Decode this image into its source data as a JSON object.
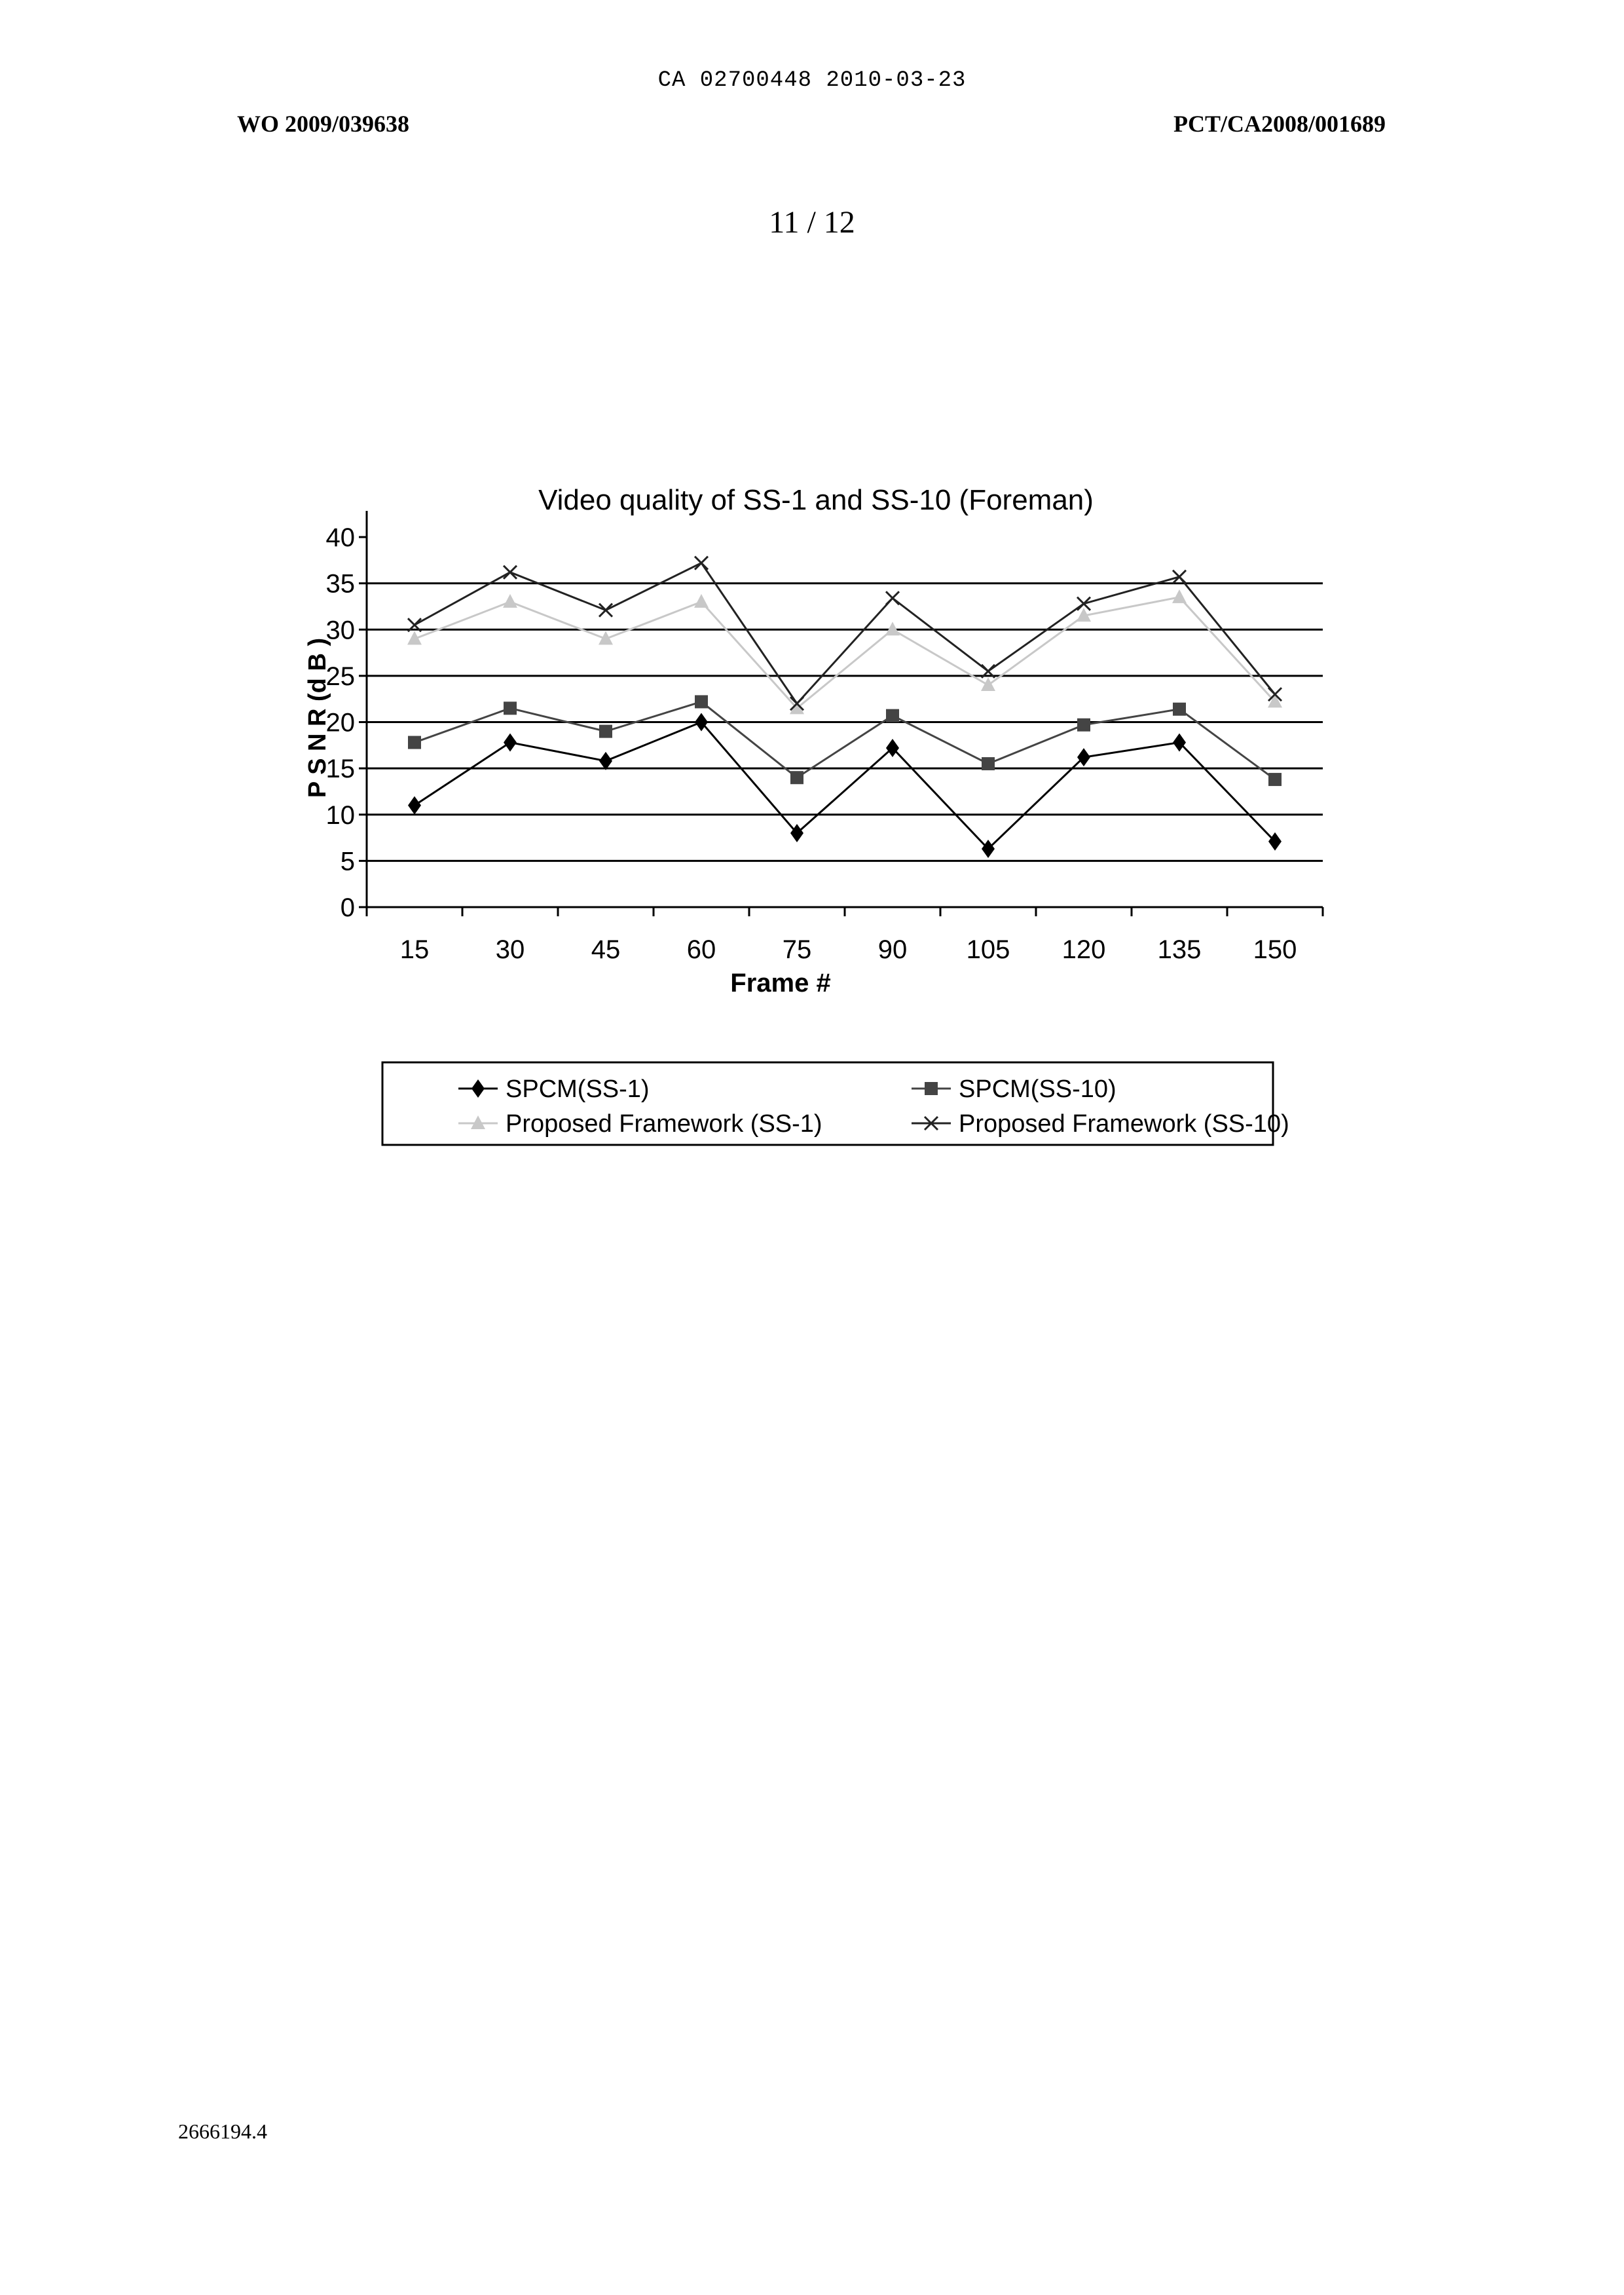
{
  "header": {
    "doc_number": "CA 02700448 2010-03-23",
    "wo_number": "WO 2009/039638",
    "pct_number": "PCT/CA2008/001689",
    "page_number": "11 / 12"
  },
  "footer": {
    "id": "2666194.4"
  },
  "chart_data": {
    "type": "line",
    "title": "Video quality of SS-1 and SS-10 (Foreman)",
    "xlabel": "Frame #",
    "ylabel": "P S N R  (d B )",
    "ylim": [
      0,
      40
    ],
    "yticks": [
      0,
      5,
      10,
      15,
      20,
      25,
      30,
      35,
      40
    ],
    "grid": true,
    "legend_placement": "bottom",
    "categories": [
      "15",
      "30",
      "45",
      "60",
      "75",
      "90",
      "105",
      "120",
      "135",
      "150"
    ],
    "series": [
      {
        "name": "SPCM(SS-1)",
        "marker": "diamond",
        "color": "#000000",
        "values": [
          11,
          17.8,
          15.8,
          20,
          8,
          17.2,
          6.3,
          16.2,
          17.8,
          7.1
        ]
      },
      {
        "name": "SPCM(SS-10)",
        "marker": "square",
        "color": "#444444",
        "values": [
          17.8,
          21.5,
          19,
          22.2,
          14,
          20.7,
          15.5,
          19.7,
          21.4,
          13.8
        ]
      },
      {
        "name": "Proposed Framework (SS-1)",
        "marker": "triangle",
        "color": "#c8c8c8",
        "values": [
          29,
          33,
          29,
          33,
          21.5,
          30,
          24,
          31.5,
          33.5,
          22.2
        ]
      },
      {
        "name": "Proposed Framework (SS-10)",
        "marker": "x",
        "color": "#222222",
        "values": [
          30.5,
          36.2,
          32.1,
          37.2,
          22,
          33.4,
          25.5,
          32.8,
          35.7,
          23
        ]
      }
    ]
  }
}
